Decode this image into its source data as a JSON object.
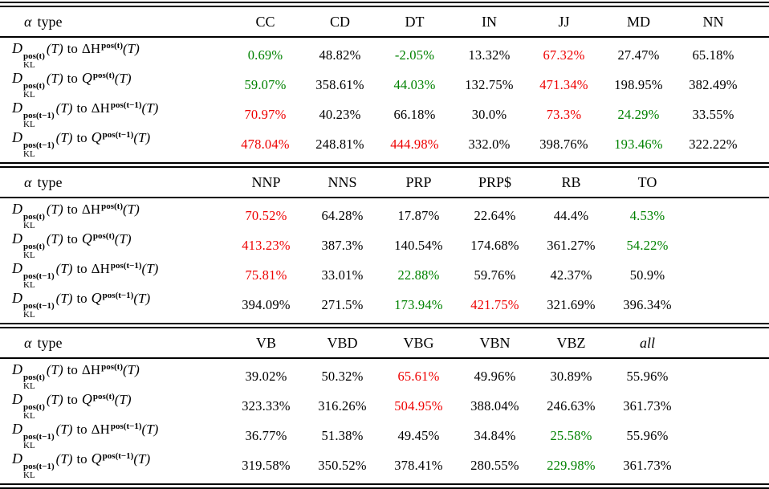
{
  "colors": {
    "green": "#008200",
    "red": "#ee0000",
    "black": "#000000"
  },
  "corner": {
    "alpha": "α",
    "word": "type"
  },
  "labels": [
    {
      "D": "D",
      "sub": "KL",
      "sup": "pos(t)",
      "argT": "(T)",
      "to": "to",
      "tgt": "ΔH",
      "tgt_sup": "pos(t)",
      "argT2": "(T)"
    },
    {
      "D": "D",
      "sub": "KL",
      "sup": "pos(t)",
      "argT": "(T)",
      "to": "to",
      "tgt": "Q",
      "tgt_sup": "pos(t)",
      "argT2": "(T)"
    },
    {
      "D": "D",
      "sub": "KL",
      "sup": "pos(t−1)",
      "argT": "(T)",
      "to": "to",
      "tgt": "ΔH",
      "tgt_sup": "pos(t−1)",
      "argT2": "(T)"
    },
    {
      "D": "D",
      "sub": "KL",
      "sup": "pos(t−1)",
      "argT": "(T)",
      "to": "to",
      "tgt": "Q",
      "tgt_sup": "pos(t−1)",
      "argT2": "(T)"
    }
  ],
  "tables": [
    {
      "columns": [
        "CC",
        "CD",
        "DT",
        "IN",
        "JJ",
        "MD",
        "NN"
      ],
      "rows": [
        {
          "cells": [
            {
              "t": "0.69%",
              "c": "green"
            },
            {
              "t": "48.82%",
              "c": "black"
            },
            {
              "t": "-2.05%",
              "c": "green"
            },
            {
              "t": "13.32%",
              "c": "black"
            },
            {
              "t": "67.32%",
              "c": "red"
            },
            {
              "t": "27.47%",
              "c": "black"
            },
            {
              "t": "65.18%",
              "c": "black"
            }
          ]
        },
        {
          "cells": [
            {
              "t": "59.07%",
              "c": "green"
            },
            {
              "t": "358.61%",
              "c": "black"
            },
            {
              "t": "44.03%",
              "c": "green"
            },
            {
              "t": "132.75%",
              "c": "black"
            },
            {
              "t": "471.34%",
              "c": "red"
            },
            {
              "t": "198.95%",
              "c": "black"
            },
            {
              "t": "382.49%",
              "c": "black"
            }
          ]
        },
        {
          "cells": [
            {
              "t": "70.97%",
              "c": "red"
            },
            {
              "t": "40.23%",
              "c": "black"
            },
            {
              "t": "66.18%",
              "c": "black"
            },
            {
              "t": "30.0%",
              "c": "black"
            },
            {
              "t": "73.3%",
              "c": "red"
            },
            {
              "t": "24.29%",
              "c": "green"
            },
            {
              "t": "33.55%",
              "c": "black"
            }
          ]
        },
        {
          "cells": [
            {
              "t": "478.04%",
              "c": "red"
            },
            {
              "t": "248.81%",
              "c": "black"
            },
            {
              "t": "444.98%",
              "c": "red"
            },
            {
              "t": "332.0%",
              "c": "black"
            },
            {
              "t": "398.76%",
              "c": "black"
            },
            {
              "t": "193.46%",
              "c": "green"
            },
            {
              "t": "322.22%",
              "c": "black"
            }
          ]
        }
      ]
    },
    {
      "columns": [
        "NNP",
        "NNS",
        "PRP",
        "PRP$",
        "RB",
        "TO"
      ],
      "rows": [
        {
          "cells": [
            {
              "t": "70.52%",
              "c": "red"
            },
            {
              "t": "64.28%",
              "c": "black"
            },
            {
              "t": "17.87%",
              "c": "black"
            },
            {
              "t": "22.64%",
              "c": "black"
            },
            {
              "t": "44.4%",
              "c": "black"
            },
            {
              "t": "4.53%",
              "c": "green"
            }
          ]
        },
        {
          "cells": [
            {
              "t": "413.23%",
              "c": "red"
            },
            {
              "t": "387.3%",
              "c": "black"
            },
            {
              "t": "140.54%",
              "c": "black"
            },
            {
              "t": "174.68%",
              "c": "black"
            },
            {
              "t": "361.27%",
              "c": "black"
            },
            {
              "t": "54.22%",
              "c": "green"
            }
          ]
        },
        {
          "cells": [
            {
              "t": "75.81%",
              "c": "red"
            },
            {
              "t": "33.01%",
              "c": "black"
            },
            {
              "t": "22.88%",
              "c": "green"
            },
            {
              "t": "59.76%",
              "c": "black"
            },
            {
              "t": "42.37%",
              "c": "black"
            },
            {
              "t": "50.9%",
              "c": "black"
            }
          ]
        },
        {
          "cells": [
            {
              "t": "394.09%",
              "c": "black"
            },
            {
              "t": "271.5%",
              "c": "black"
            },
            {
              "t": "173.94%",
              "c": "green"
            },
            {
              "t": "421.75%",
              "c": "red"
            },
            {
              "t": "321.69%",
              "c": "black"
            },
            {
              "t": "396.34%",
              "c": "black"
            }
          ]
        }
      ]
    },
    {
      "columns": [
        "VB",
        "VBD",
        "VBG",
        "VBN",
        "VBZ",
        "all"
      ],
      "rows": [
        {
          "cells": [
            {
              "t": "39.02%",
              "c": "black"
            },
            {
              "t": "50.32%",
              "c": "black"
            },
            {
              "t": "65.61%",
              "c": "red"
            },
            {
              "t": "49.96%",
              "c": "black"
            },
            {
              "t": "30.89%",
              "c": "black"
            },
            {
              "t": "55.96%",
              "c": "black"
            }
          ]
        },
        {
          "cells": [
            {
              "t": "323.33%",
              "c": "black"
            },
            {
              "t": "316.26%",
              "c": "black"
            },
            {
              "t": "504.95%",
              "c": "red"
            },
            {
              "t": "388.04%",
              "c": "black"
            },
            {
              "t": "246.63%",
              "c": "black"
            },
            {
              "t": "361.73%",
              "c": "black"
            }
          ]
        },
        {
          "cells": [
            {
              "t": "36.77%",
              "c": "black"
            },
            {
              "t": "51.38%",
              "c": "black"
            },
            {
              "t": "49.45%",
              "c": "black"
            },
            {
              "t": "34.84%",
              "c": "black"
            },
            {
              "t": "25.58%",
              "c": "green"
            },
            {
              "t": "55.96%",
              "c": "black"
            }
          ]
        },
        {
          "cells": [
            {
              "t": "319.58%",
              "c": "black"
            },
            {
              "t": "350.52%",
              "c": "black"
            },
            {
              "t": "378.41%",
              "c": "black"
            },
            {
              "t": "280.55%",
              "c": "black"
            },
            {
              "t": "229.98%",
              "c": "green"
            },
            {
              "t": "361.73%",
              "c": "black"
            }
          ]
        }
      ]
    }
  ]
}
